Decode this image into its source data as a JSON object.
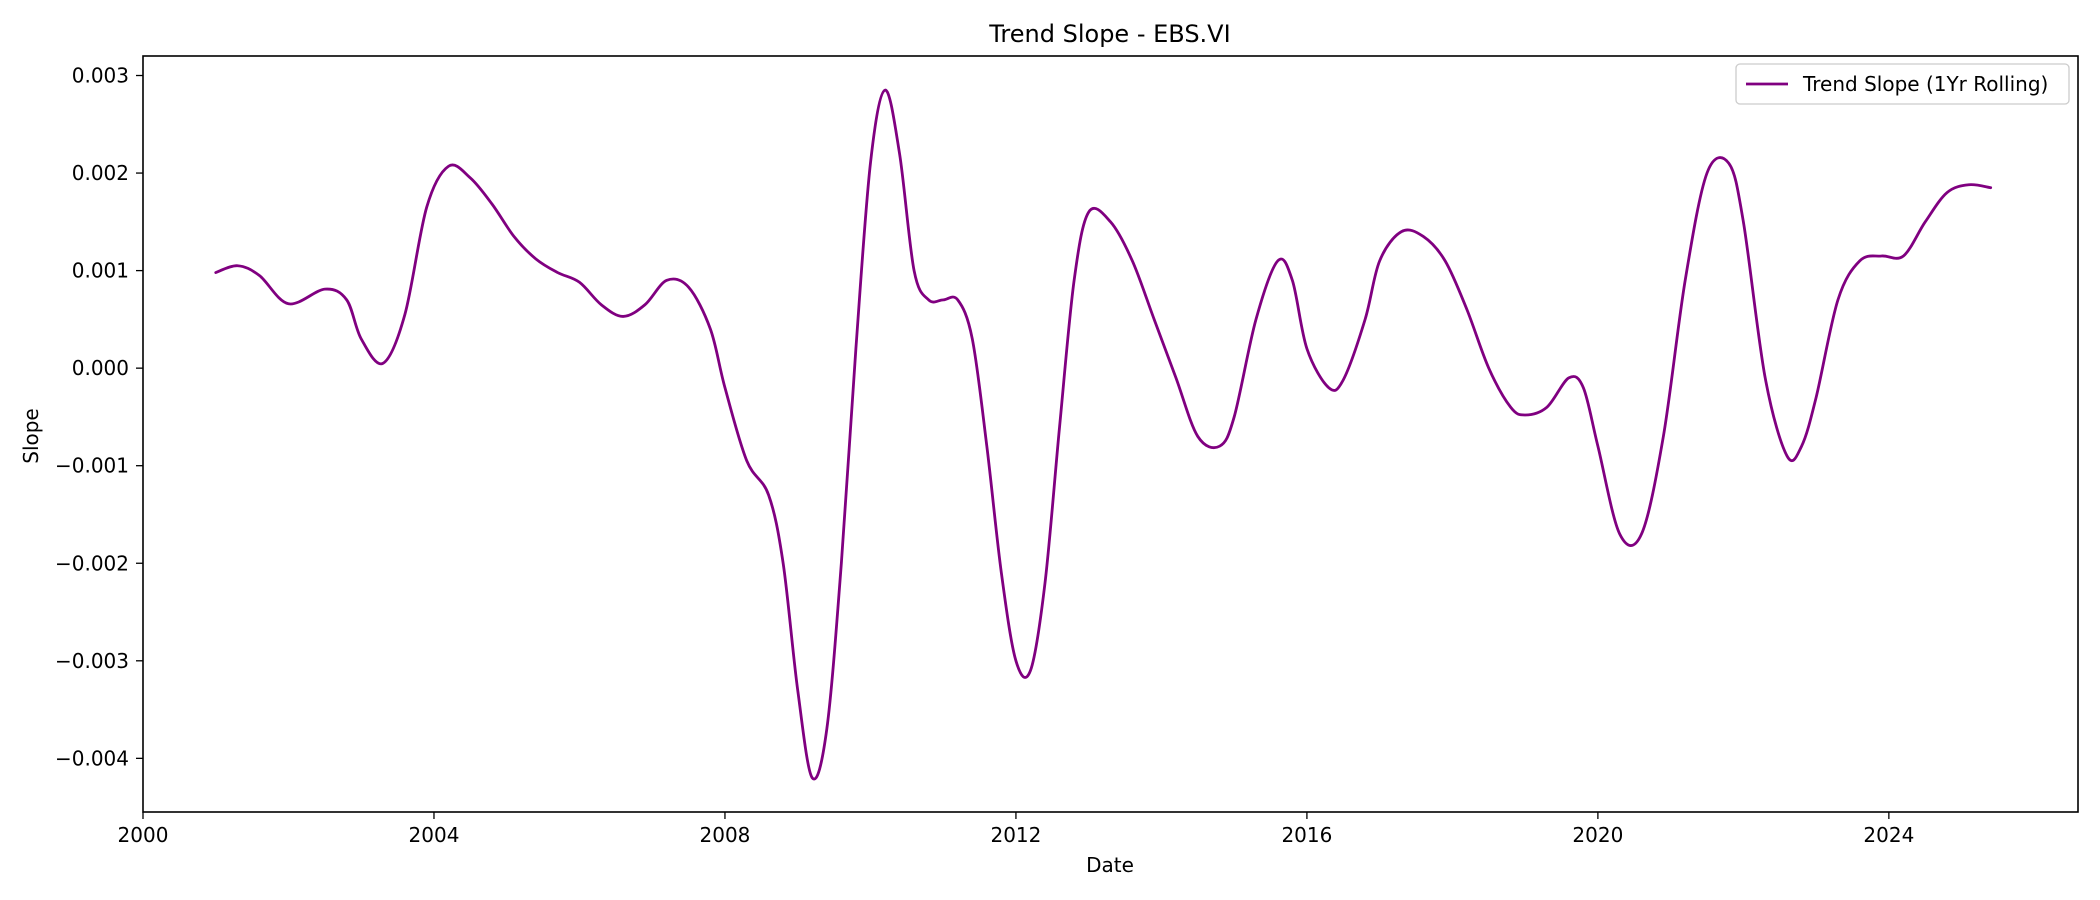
{
  "chart_data": {
    "type": "line",
    "title": "Trend Slope - EBS.VI",
    "xlabel": "Date",
    "ylabel": "Slope",
    "xlim": [
      2000,
      2026.6
    ],
    "ylim": [
      -0.00455,
      0.0032
    ],
    "x_ticks": [
      2000,
      2004,
      2008,
      2012,
      2016,
      2020,
      2024
    ],
    "x_tick_labels": [
      "2000",
      "2004",
      "2008",
      "2012",
      "2016",
      "2020",
      "2024"
    ],
    "y_ticks": [
      0.003,
      0.002,
      0.001,
      0.0,
      -0.001,
      -0.002,
      -0.003,
      -0.004
    ],
    "y_tick_labels": [
      "0.003",
      "0.002",
      "0.001",
      "0.000",
      "−0.001",
      "−0.002",
      "−0.003",
      "−0.004"
    ],
    "grid": false,
    "legend_position": "top-right",
    "series": [
      {
        "name": "Trend Slope (1Yr Rolling)",
        "color": "#800080",
        "x": [
          2001.0,
          2001.3,
          2001.6,
          2002.0,
          2002.5,
          2002.8,
          2003.0,
          2003.3,
          2003.6,
          2003.9,
          2004.2,
          2004.5,
          2004.8,
          2005.1,
          2005.4,
          2005.7,
          2006.0,
          2006.3,
          2006.6,
          2006.9,
          2007.2,
          2007.5,
          2007.8,
          2008.0,
          2008.3,
          2008.6,
          2008.8,
          2009.0,
          2009.2,
          2009.4,
          2009.6,
          2009.8,
          2010.0,
          2010.2,
          2010.4,
          2010.6,
          2010.8,
          2011.0,
          2011.2,
          2011.4,
          2011.6,
          2011.8,
          2012.0,
          2012.2,
          2012.4,
          2012.6,
          2012.8,
          2013.0,
          2013.3,
          2013.6,
          2013.9,
          2014.2,
          2014.5,
          2014.8,
          2015.0,
          2015.3,
          2015.6,
          2015.8,
          2016.0,
          2016.3,
          2016.5,
          2016.8,
          2017.0,
          2017.3,
          2017.6,
          2017.9,
          2018.2,
          2018.5,
          2018.8,
          2019.0,
          2019.3,
          2019.6,
          2019.8,
          2020.0,
          2020.3,
          2020.6,
          2020.9,
          2021.2,
          2021.5,
          2021.8,
          2022.0,
          2022.3,
          2022.6,
          2022.8,
          2023.0,
          2023.3,
          2023.6,
          2023.9,
          2024.2,
          2024.5,
          2024.8,
          2025.1,
          2025.4
        ],
        "values": [
          0.00098,
          0.00105,
          0.00095,
          0.00066,
          0.00081,
          0.0007,
          0.0003,
          5e-05,
          0.00055,
          0.00165,
          0.00207,
          0.00195,
          0.00168,
          0.00135,
          0.00112,
          0.00098,
          0.00088,
          0.00065,
          0.00053,
          0.00065,
          0.0009,
          0.00083,
          0.0004,
          -0.0002,
          -0.00095,
          -0.0013,
          -0.002,
          -0.0033,
          -0.0042,
          -0.0037,
          -0.002,
          0.0002,
          0.0021,
          0.00285,
          0.0022,
          0.001,
          0.0007,
          0.0007,
          0.0007,
          0.0003,
          -0.0008,
          -0.0021,
          -0.003,
          -0.0031,
          -0.0022,
          -0.0006,
          0.0009,
          0.0016,
          0.0015,
          0.0011,
          0.0005,
          -0.0001,
          -0.0007,
          -0.0008,
          -0.0005,
          0.0005,
          0.0011,
          0.0009,
          0.0002,
          -0.0002,
          -0.00012,
          0.0005,
          0.0011,
          0.0014,
          0.00135,
          0.0011,
          0.0006,
          0.0,
          -0.0004,
          -0.00048,
          -0.0004,
          -0.0001,
          -0.0002,
          -0.0008,
          -0.0017,
          -0.0017,
          -0.0007,
          0.0009,
          0.002,
          0.0021,
          0.0015,
          -0.0001,
          -0.0009,
          -0.0008,
          -0.0003,
          0.0007,
          0.0011,
          0.00115,
          0.00115,
          0.0015,
          0.0018,
          0.00188,
          0.00185
        ]
      }
    ]
  }
}
